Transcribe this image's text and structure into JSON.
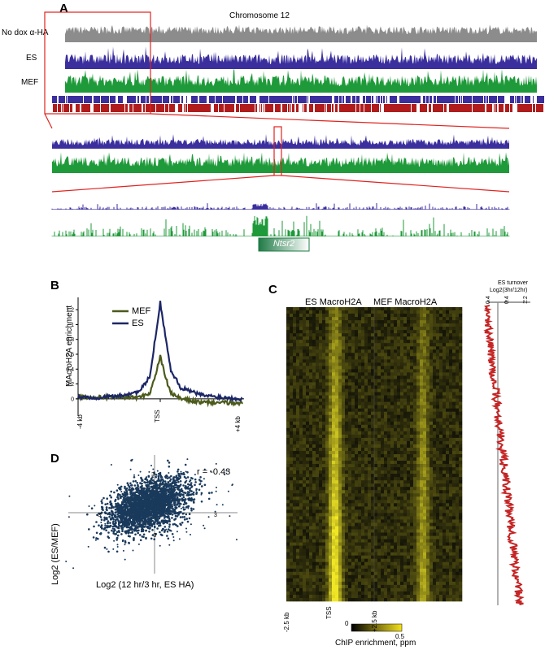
{
  "panelA": {
    "letter": "A",
    "chromosome_label": "Chromosome 12",
    "track_labels": [
      "No dox α-HA",
      "ES",
      "MEF"
    ],
    "gene_label": "Ntsr2",
    "colors": {
      "gray": "#8c8c8c",
      "es": "#3b2f9e",
      "mef": "#1f9a3a",
      "red": "#b01c1c",
      "zoom": "#e0231f",
      "gene": "#1f7a45"
    }
  },
  "panelB": {
    "letter": "B",
    "ylabel": "MAcroH2A enrichment",
    "legend": [
      "MEF",
      "ES"
    ],
    "yticks": [
      "1.2",
      "1",
      "0.8",
      "0.6",
      "0.4",
      "0.2",
      "0"
    ],
    "xticks": [
      "-4 kb",
      "TSS",
      "+4 kb"
    ],
    "chart_data": {
      "type": "line",
      "x_range": [
        -4,
        4
      ],
      "ylim": [
        0,
        1.3
      ],
      "series": [
        {
          "name": "MEF",
          "color": "#4c5a1c",
          "x": [
            -4,
            -3,
            -2,
            -1,
            -0.5,
            -0.25,
            0,
            0.25,
            0.5,
            1,
            2,
            3,
            4
          ],
          "values": [
            0.03,
            0.02,
            0.02,
            0.02,
            0.08,
            0.3,
            0.57,
            0.3,
            0.08,
            0.0,
            -0.05,
            -0.05,
            -0.06
          ]
        },
        {
          "name": "ES",
          "color": "#1c2666",
          "x": [
            -4,
            -3,
            -2,
            -1,
            -0.5,
            -0.25,
            0,
            0.25,
            0.5,
            1,
            2,
            3,
            4
          ],
          "values": [
            0.02,
            0.02,
            0.04,
            0.1,
            0.3,
            0.8,
            1.3,
            0.85,
            0.4,
            0.15,
            0.05,
            0.02,
            0.0
          ]
        }
      ]
    }
  },
  "panelC": {
    "letter": "C",
    "col_titles": [
      "ES MacroH2A",
      "MEF MacroH2A"
    ],
    "xticks": [
      "-2.5 kb",
      "TSS",
      "+2.5 kb"
    ],
    "colorbar_min": "0",
    "colorbar_max": "0.5",
    "colorbar_label": "ChIP enrichment, ppm",
    "turnover_title": "ES turnover",
    "turnover_sub": "Log2(3hr/12hr)",
    "turnover_ticks": [
      "0.4",
      "0.4",
      "1.2"
    ]
  },
  "panelD": {
    "letter": "D",
    "r_label": "r = -0.43",
    "ylabel": "Log2 (ES/MEF)",
    "xlabel": "Log2 (12 hr/3 hr, ES HA)",
    "tick_neg": "-3",
    "tick_pos": "3",
    "chart_data": {
      "type": "scatter",
      "xlim": [
        -5,
        5
      ],
      "ylim": [
        -5,
        5
      ],
      "correlation": -0.43,
      "point_color": "#1a3a5c"
    }
  }
}
